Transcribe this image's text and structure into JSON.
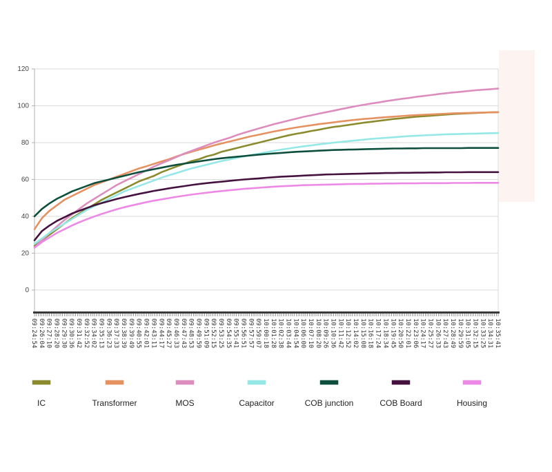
{
  "chart_data": {
    "type": "line",
    "title": "",
    "xlabel": "",
    "ylabel": "",
    "ylim": [
      -12,
      120
    ],
    "yticks": [
      0,
      20,
      40,
      60,
      80,
      100,
      120
    ],
    "grid": true,
    "legend_position": "bottom",
    "x": [
      "09:24:54",
      "09:26:04",
      "09:27:10",
      "09:28:20",
      "09:29:30",
      "09:30:36",
      "09:31:42",
      "09:32:52",
      "09:34:02",
      "09:35:13",
      "09:36:23",
      "09:37:33",
      "09:38:39",
      "09:39:49",
      "09:40:55",
      "09:42:01",
      "09:43:11",
      "09:44:17",
      "09:45:27",
      "09:46:33",
      "09:47:43",
      "09:48:53",
      "09:49:59",
      "09:51:09",
      "09:52:15",
      "09:53:25",
      "09:54:35",
      "09:55:41",
      "09:56:51",
      "09:57:57",
      "09:59:07",
      "10:00:18",
      "10:01:28",
      "10:02:38",
      "10:03:44",
      "10:04:54",
      "10:06:00",
      "10:07:10",
      "10:08:20",
      "10:09:26",
      "10:10:36",
      "10:11:42",
      "10:12:52",
      "10:14:02",
      "10:15:08",
      "10:16:18",
      "10:17:24",
      "10:18:34",
      "10:19:45",
      "10:20:50",
      "10:22:01",
      "10:23:06",
      "10:24:17",
      "10:25:27",
      "10:26:33",
      "10:27:43",
      "10:28:49",
      "10:29:59",
      "10:31:05",
      "10:32:15",
      "10:33:25",
      "10:34:31",
      "10:35:41"
    ],
    "series": [
      {
        "name": "IC",
        "color": "#8b8b2e",
        "values": [
          24,
          27,
          30,
          33,
          36,
          39,
          41.5,
          44,
          46.5,
          49,
          51,
          53,
          55,
          57,
          59,
          60.5,
          62,
          64,
          65.5,
          67,
          68.5,
          70,
          71,
          72.5,
          73.5,
          75,
          76,
          77,
          78,
          79,
          80,
          81,
          82,
          83,
          84,
          84.8,
          85.5,
          86.3,
          87,
          87.8,
          88.5,
          89,
          89.6,
          90.2,
          90.8,
          91.3,
          91.8,
          92.3,
          92.8,
          93.2,
          93.6,
          94,
          94.3,
          94.6,
          94.9,
          95.2,
          95.5,
          95.7,
          95.9,
          96.1,
          96.3,
          96.4,
          96.5
        ]
      },
      {
        "name": "Transformer",
        "color": "#e59160",
        "values": [
          33,
          39,
          43,
          46,
          49,
          51,
          53,
          55,
          57,
          58.5,
          60,
          61.5,
          63,
          64.5,
          66,
          67.2,
          68.5,
          69.8,
          71,
          72.5,
          73.8,
          75,
          76.2,
          77.3,
          78.5,
          79.5,
          80.5,
          81.5,
          82.5,
          83.5,
          84.3,
          85.2,
          86,
          86.8,
          87.5,
          88.2,
          88.8,
          89.4,
          90,
          90.5,
          91,
          91.5,
          92,
          92.4,
          92.8,
          93.1,
          93.5,
          93.8,
          94.1,
          94.4,
          94.7,
          94.9,
          95.1,
          95.3,
          95.5,
          95.7,
          95.9,
          96,
          96.1,
          96.2,
          96.3,
          96.4,
          96.5
        ]
      },
      {
        "name": "MOS",
        "color": "#dd8dbd",
        "values": [
          23,
          27,
          31,
          34.5,
          38,
          41,
          44,
          47,
          49.5,
          52,
          54.5,
          57,
          59,
          61,
          63,
          65,
          67,
          68.8,
          70.5,
          72.2,
          74,
          75.5,
          77,
          78.5,
          80,
          81.3,
          82.5,
          84,
          85.3,
          86.5,
          87.7,
          88.8,
          90,
          91,
          92,
          93,
          94,
          94.8,
          95.7,
          96.5,
          97.3,
          98.2,
          99,
          99.8,
          100.5,
          101.2,
          101.8,
          102.5,
          103.1,
          103.7,
          104.2,
          104.8,
          105.3,
          105.8,
          106.3,
          106.8,
          107.2,
          107.6,
          108,
          108.4,
          108.7,
          109,
          109.3
        ]
      },
      {
        "name": "Capacitor",
        "color": "#94e8e5",
        "values": [
          25,
          28,
          31,
          33.5,
          36,
          38.5,
          41,
          43.5,
          45.5,
          47.5,
          49.5,
          51.5,
          53.5,
          55,
          56.5,
          58,
          59.5,
          61,
          62.3,
          63.5,
          64.8,
          66,
          67,
          68,
          69,
          70,
          70.8,
          71.7,
          72.5,
          73.3,
          74,
          74.8,
          75.5,
          76.2,
          76.8,
          77.4,
          78,
          78.5,
          79,
          79.5,
          80,
          80.4,
          80.8,
          81.2,
          81.6,
          82,
          82.3,
          82.6,
          82.9,
          83.2,
          83.5,
          83.7,
          83.9,
          84.1,
          84.3,
          84.5,
          84.6,
          84.7,
          84.8,
          84.9,
          85,
          85.1,
          85.2
        ]
      },
      {
        "name": "COB  junction",
        "color": "#0d4f3c",
        "values": [
          40,
          44,
          47,
          49.5,
          51.5,
          53.5,
          55,
          56.5,
          58,
          59,
          60,
          61,
          62,
          63,
          64,
          64.8,
          65.6,
          66.4,
          67.2,
          68,
          68.6,
          69.2,
          69.8,
          70.4,
          71,
          71.5,
          71.9,
          72.3,
          72.7,
          73.1,
          73.5,
          73.8,
          74.1,
          74.4,
          74.7,
          75,
          75.2,
          75.4,
          75.6,
          75.8,
          76,
          76.1,
          76.2,
          76.3,
          76.4,
          76.5,
          76.6,
          76.7,
          76.8,
          76.8,
          76.9,
          76.9,
          77,
          77,
          77,
          77,
          77,
          77,
          77.1,
          77.1,
          77.1,
          77.1,
          77.1
        ]
      },
      {
        "name": "COB Board",
        "color": "#45113f",
        "values": [
          27,
          32,
          35,
          37.5,
          39.5,
          41.5,
          43,
          44.5,
          46,
          47.2,
          48.3,
          49.4,
          50.4,
          51.3,
          52.2,
          53,
          53.8,
          54.5,
          55.2,
          55.8,
          56.4,
          57,
          57.5,
          58,
          58.4,
          58.8,
          59.2,
          59.6,
          60,
          60.3,
          60.6,
          60.9,
          61.2,
          61.5,
          61.7,
          61.9,
          62.1,
          62.3,
          62.5,
          62.7,
          62.8,
          62.9,
          63,
          63.1,
          63.2,
          63.3,
          63.4,
          63.5,
          63.5,
          63.6,
          63.6,
          63.7,
          63.7,
          63.8,
          63.8,
          63.9,
          63.9,
          63.9,
          64,
          64,
          64,
          64,
          64
        ]
      },
      {
        "name": "Housing",
        "color": "#ee88e6",
        "values": [
          23,
          26,
          28.5,
          31,
          33,
          35,
          36.8,
          38.4,
          39.9,
          41.3,
          42.6,
          43.8,
          44.9,
          45.9,
          46.8,
          47.7,
          48.5,
          49.2,
          49.9,
          50.6,
          51.2,
          51.8,
          52.3,
          52.8,
          53.3,
          53.7,
          54.1,
          54.5,
          54.9,
          55.2,
          55.5,
          55.8,
          56.1,
          56.3,
          56.5,
          56.7,
          56.9,
          57,
          57.1,
          57.2,
          57.3,
          57.4,
          57.5,
          57.6,
          57.6,
          57.7,
          57.7,
          57.8,
          57.8,
          57.9,
          57.9,
          57.9,
          58,
          58,
          58,
          58,
          58.1,
          58.1,
          58.1,
          58.2,
          58.2,
          58.2,
          58.2
        ]
      }
    ]
  },
  "colors": {
    "background": "#ffffff",
    "grid": "#d9d9d9",
    "axis": "#b0b0b0",
    "bottom_band": "#3a3a3a",
    "side_panel": "#fdf3f1"
  }
}
